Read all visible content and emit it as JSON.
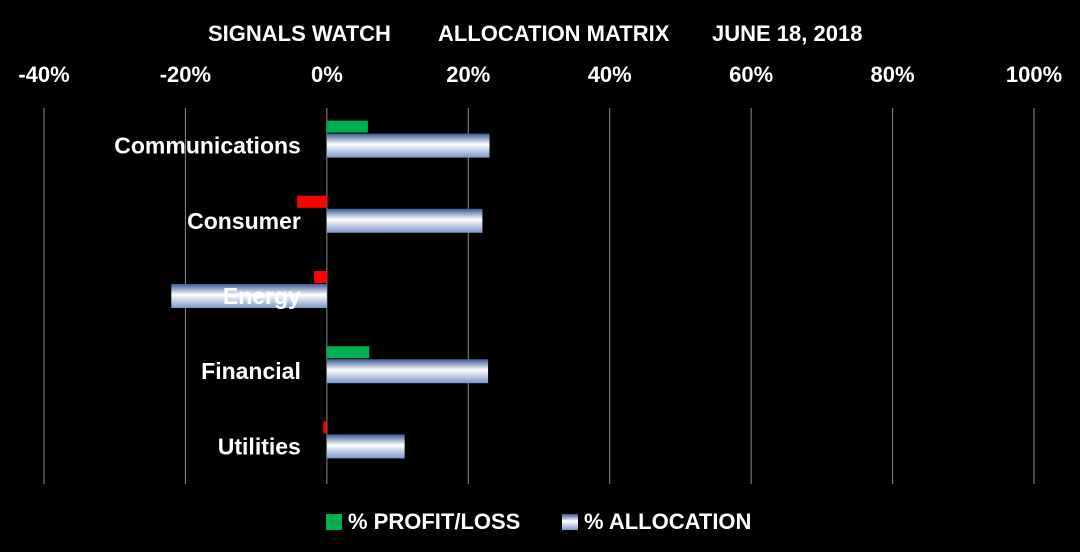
{
  "chart_data": {
    "type": "bar",
    "orientation": "horizontal",
    "title_parts": [
      "SIGNALS WATCH",
      "ALLOCATION MATRIX",
      "JUNE 18, 2018"
    ],
    "categories": [
      "Communications",
      "Consumer",
      "Energy",
      "Financial",
      "Utilities"
    ],
    "series": [
      {
        "name": "% PROFIT/LOSS",
        "color_positive": "#00b050",
        "color_negative": "#ff0000",
        "values": [
          5.8,
          -4.2,
          -1.8,
          6.0,
          -0.5
        ]
      },
      {
        "name": "% ALLOCATION",
        "color": "#8ea9db",
        "values": [
          23.0,
          22.0,
          -22.0,
          22.8,
          11.0
        ]
      }
    ],
    "xlim": [
      -40,
      100
    ],
    "xticks": [
      -40,
      -20,
      0,
      20,
      40,
      60,
      80,
      100
    ],
    "tick_labels": [
      "-40%",
      "-20%",
      "0%",
      "20%",
      "40%",
      "60%",
      "80%",
      "100%"
    ],
    "legend_position": "bottom",
    "grid": true
  }
}
